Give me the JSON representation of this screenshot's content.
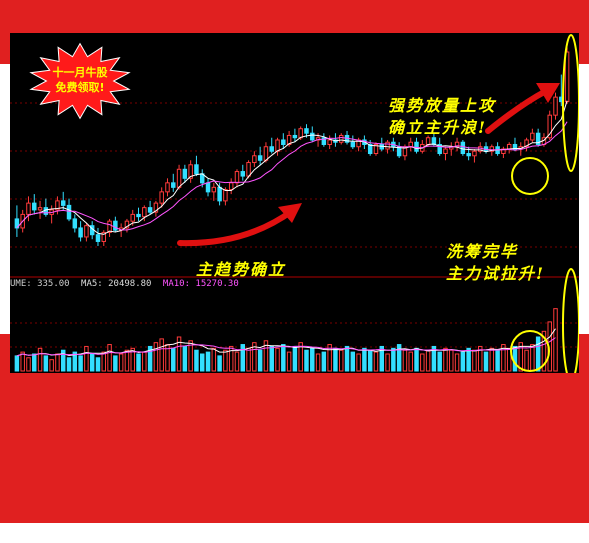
{
  "promo": {
    "line1": "十一月牛股",
    "line2": "免费领取!"
  },
  "annotations": {
    "strong_volume": [
      "强势放量上攻",
      "确立主升浪!"
    ],
    "main_trend": "主趋势确立",
    "washout": [
      "洗筹完毕",
      "主力试拉升!"
    ]
  },
  "indicator": {
    "volume": "UME: 335.00",
    "ma5": "MA5: 20498.80",
    "ma10": "MA10: 15270.30"
  },
  "colors": {
    "frame_red": "#e02020",
    "up": "#ff3b3b",
    "down": "#33dfff",
    "ma5": "#ffffff",
    "ma10": "#ff55ff",
    "accent": "#ffff00",
    "gridline": "#7a0000"
  },
  "chart_data": {
    "type": "candlestick+volume",
    "title": "",
    "price_candles": [
      {
        "o": 56,
        "h": 62,
        "l": 48,
        "c": 52
      },
      {
        "o": 52,
        "h": 60,
        "l": 50,
        "c": 58
      },
      {
        "o": 58,
        "h": 66,
        "l": 55,
        "c": 63
      },
      {
        "o": 63,
        "h": 67,
        "l": 58,
        "c": 60
      },
      {
        "o": 60,
        "h": 64,
        "l": 56,
        "c": 61
      },
      {
        "o": 61,
        "h": 65,
        "l": 57,
        "c": 58
      },
      {
        "o": 58,
        "h": 62,
        "l": 54,
        "c": 60
      },
      {
        "o": 60,
        "h": 66,
        "l": 58,
        "c": 64
      },
      {
        "o": 64,
        "h": 68,
        "l": 60,
        "c": 62
      },
      {
        "o": 62,
        "h": 65,
        "l": 55,
        "c": 56
      },
      {
        "o": 56,
        "h": 58,
        "l": 50,
        "c": 52
      },
      {
        "o": 52,
        "h": 55,
        "l": 46,
        "c": 48
      },
      {
        "o": 48,
        "h": 54,
        "l": 46,
        "c": 53
      },
      {
        "o": 53,
        "h": 55,
        "l": 47,
        "c": 49
      },
      {
        "o": 49,
        "h": 52,
        "l": 44,
        "c": 46
      },
      {
        "o": 46,
        "h": 51,
        "l": 44,
        "c": 50
      },
      {
        "o": 50,
        "h": 56,
        "l": 48,
        "c": 55
      },
      {
        "o": 55,
        "h": 57,
        "l": 50,
        "c": 51
      },
      {
        "o": 51,
        "h": 54,
        "l": 48,
        "c": 52
      },
      {
        "o": 52,
        "h": 56,
        "l": 50,
        "c": 55
      },
      {
        "o": 55,
        "h": 60,
        "l": 53,
        "c": 58
      },
      {
        "o": 58,
        "h": 61,
        "l": 55,
        "c": 57
      },
      {
        "o": 57,
        "h": 62,
        "l": 55,
        "c": 61
      },
      {
        "o": 61,
        "h": 64,
        "l": 58,
        "c": 59
      },
      {
        "o": 59,
        "h": 64,
        "l": 57,
        "c": 63
      },
      {
        "o": 63,
        "h": 70,
        "l": 61,
        "c": 68
      },
      {
        "o": 68,
        "h": 74,
        "l": 66,
        "c": 72
      },
      {
        "o": 72,
        "h": 76,
        "l": 68,
        "c": 70
      },
      {
        "o": 70,
        "h": 80,
        "l": 69,
        "c": 78
      },
      {
        "o": 78,
        "h": 80,
        "l": 72,
        "c": 74
      },
      {
        "o": 74,
        "h": 82,
        "l": 72,
        "c": 80
      },
      {
        "o": 80,
        "h": 84,
        "l": 75,
        "c": 76
      },
      {
        "o": 76,
        "h": 78,
        "l": 70,
        "c": 72
      },
      {
        "o": 72,
        "h": 74,
        "l": 66,
        "c": 68
      },
      {
        "o": 68,
        "h": 72,
        "l": 64,
        "c": 70
      },
      {
        "o": 70,
        "h": 72,
        "l": 62,
        "c": 64
      },
      {
        "o": 64,
        "h": 70,
        "l": 62,
        "c": 69
      },
      {
        "o": 69,
        "h": 74,
        "l": 67,
        "c": 72
      },
      {
        "o": 72,
        "h": 78,
        "l": 70,
        "c": 77
      },
      {
        "o": 77,
        "h": 80,
        "l": 73,
        "c": 75
      },
      {
        "o": 75,
        "h": 82,
        "l": 74,
        "c": 81
      },
      {
        "o": 81,
        "h": 86,
        "l": 79,
        "c": 84
      },
      {
        "o": 84,
        "h": 88,
        "l": 80,
        "c": 82
      },
      {
        "o": 82,
        "h": 90,
        "l": 81,
        "c": 88
      },
      {
        "o": 88,
        "h": 92,
        "l": 85,
        "c": 86
      },
      {
        "o": 86,
        "h": 92,
        "l": 84,
        "c": 91
      },
      {
        "o": 91,
        "h": 94,
        "l": 87,
        "c": 89
      },
      {
        "o": 89,
        "h": 95,
        "l": 88,
        "c": 93
      },
      {
        "o": 93,
        "h": 96,
        "l": 90,
        "c": 92
      },
      {
        "o": 92,
        "h": 97,
        "l": 91,
        "c": 96
      },
      {
        "o": 96,
        "h": 98,
        "l": 92,
        "c": 94
      },
      {
        "o": 94,
        "h": 97,
        "l": 90,
        "c": 91
      },
      {
        "o": 91,
        "h": 94,
        "l": 88,
        "c": 92
      },
      {
        "o": 92,
        "h": 94,
        "l": 88,
        "c": 89
      },
      {
        "o": 89,
        "h": 93,
        "l": 87,
        "c": 91
      },
      {
        "o": 91,
        "h": 94,
        "l": 88,
        "c": 90
      },
      {
        "o": 90,
        "h": 94,
        "l": 89,
        "c": 93
      },
      {
        "o": 93,
        "h": 95,
        "l": 89,
        "c": 90
      },
      {
        "o": 90,
        "h": 93,
        "l": 87,
        "c": 88
      },
      {
        "o": 88,
        "h": 92,
        "l": 86,
        "c": 91
      },
      {
        "o": 91,
        "h": 93,
        "l": 87,
        "c": 89
      },
      {
        "o": 89,
        "h": 91,
        "l": 84,
        "c": 85
      },
      {
        "o": 85,
        "h": 90,
        "l": 84,
        "c": 89
      },
      {
        "o": 89,
        "h": 92,
        "l": 86,
        "c": 87
      },
      {
        "o": 87,
        "h": 91,
        "l": 85,
        "c": 90
      },
      {
        "o": 90,
        "h": 92,
        "l": 86,
        "c": 88
      },
      {
        "o": 88,
        "h": 90,
        "l": 83,
        "c": 84
      },
      {
        "o": 84,
        "h": 89,
        "l": 82,
        "c": 88
      },
      {
        "o": 88,
        "h": 92,
        "l": 86,
        "c": 90
      },
      {
        "o": 90,
        "h": 92,
        "l": 85,
        "c": 86
      },
      {
        "o": 86,
        "h": 91,
        "l": 85,
        "c": 89
      },
      {
        "o": 89,
        "h": 93,
        "l": 88,
        "c": 92
      },
      {
        "o": 92,
        "h": 94,
        "l": 88,
        "c": 89
      },
      {
        "o": 89,
        "h": 92,
        "l": 84,
        "c": 85
      },
      {
        "o": 85,
        "h": 88,
        "l": 82,
        "c": 87
      },
      {
        "o": 87,
        "h": 90,
        "l": 84,
        "c": 88
      },
      {
        "o": 88,
        "h": 92,
        "l": 86,
        "c": 90
      },
      {
        "o": 90,
        "h": 91,
        "l": 84,
        "c": 85
      },
      {
        "o": 85,
        "h": 88,
        "l": 82,
        "c": 84
      },
      {
        "o": 84,
        "h": 87,
        "l": 81,
        "c": 86
      },
      {
        "o": 86,
        "h": 90,
        "l": 85,
        "c": 88
      },
      {
        "o": 88,
        "h": 90,
        "l": 85,
        "c": 86
      },
      {
        "o": 86,
        "h": 89,
        "l": 84,
        "c": 88
      },
      {
        "o": 88,
        "h": 90,
        "l": 84,
        "c": 85
      },
      {
        "o": 85,
        "h": 88,
        "l": 83,
        "c": 87
      },
      {
        "o": 87,
        "h": 90,
        "l": 85,
        "c": 89
      },
      {
        "o": 89,
        "h": 92,
        "l": 86,
        "c": 87
      },
      {
        "o": 87,
        "h": 90,
        "l": 84,
        "c": 88
      },
      {
        "o": 88,
        "h": 92,
        "l": 86,
        "c": 91
      },
      {
        "o": 91,
        "h": 96,
        "l": 90,
        "c": 94
      },
      {
        "o": 94,
        "h": 96,
        "l": 88,
        "c": 89
      },
      {
        "o": 89,
        "h": 94,
        "l": 88,
        "c": 92
      },
      {
        "o": 92,
        "h": 104,
        "l": 91,
        "c": 102
      },
      {
        "o": 102,
        "h": 112,
        "l": 100,
        "c": 110
      },
      {
        "o": 110,
        "h": 120,
        "l": 106,
        "c": 108
      },
      {
        "o": 108,
        "h": 132,
        "l": 107,
        "c": 130
      }
    ],
    "volume": [
      8,
      10,
      7,
      9,
      12,
      8,
      6,
      9,
      11,
      7,
      10,
      8,
      13,
      9,
      7,
      10,
      14,
      8,
      9,
      11,
      12,
      9,
      10,
      13,
      15,
      17,
      14,
      12,
      18,
      13,
      16,
      11,
      9,
      10,
      12,
      8,
      11,
      13,
      10,
      14,
      12,
      15,
      11,
      16,
      13,
      12,
      14,
      10,
      13,
      15,
      11,
      12,
      9,
      10,
      14,
      12,
      11,
      13,
      10,
      9,
      12,
      11,
      10,
      13,
      9,
      12,
      14,
      11,
      10,
      12,
      9,
      11,
      13,
      10,
      12,
      11,
      9,
      10,
      12,
      11,
      13,
      10,
      12,
      11,
      14,
      12,
      13,
      15,
      11,
      14,
      18,
      21,
      26,
      33
    ]
  }
}
